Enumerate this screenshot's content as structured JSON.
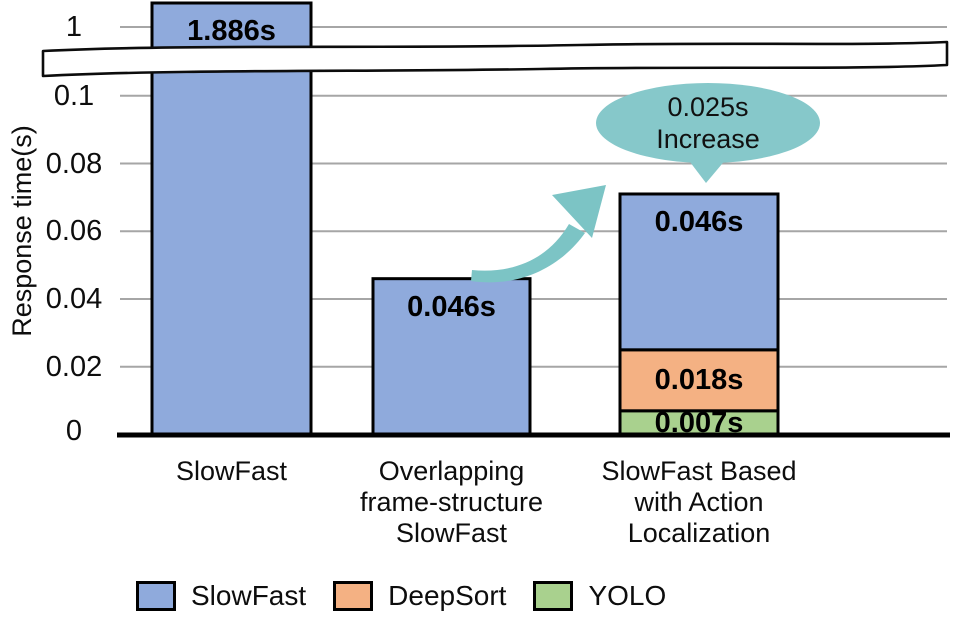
{
  "figure": {
    "y_axis_title": "Response time(s)",
    "y_tick_labels": [
      "1",
      "0.1",
      "0.08",
      "0.06",
      "0.04",
      "0.02",
      "0"
    ],
    "legend": [
      {
        "label": "SlowFast",
        "color": "#8FAADC"
      },
      {
        "label": "DeepSort",
        "color": "#F4B183"
      },
      {
        "label": "YOLO",
        "color": "#A9D18E"
      }
    ],
    "colors": {
      "bar_blue": "#8FAADC",
      "bar_orange": "#F4B183",
      "bar_green": "#A9D18E",
      "callout_teal": "#86C8CA",
      "arrow_teal": "#7CC4C5",
      "gridline_gray": "#A6A6A6",
      "outline_black": "#000000"
    }
  },
  "chart_data": {
    "type": "bar",
    "stacked": true,
    "title": "",
    "xlabel": "",
    "ylabel": "Response time(s)",
    "y_axis": {
      "unit": "s",
      "tick_values": [
        0,
        0.02,
        0.04,
        0.06,
        0.08,
        0.1,
        1
      ],
      "axis_break_between": [
        0.1,
        1
      ],
      "grid": true
    },
    "legend_position": "bottom",
    "series_names": [
      "SlowFast",
      "DeepSort",
      "YOLO"
    ],
    "categories": [
      "SlowFast",
      "Overlapping frame-structure SlowFast",
      "SlowFast Based with Action Localization"
    ],
    "bars": [
      {
        "category_lines": [
          "SlowFast"
        ],
        "segments": [
          {
            "series": "SlowFast",
            "value": 1.886,
            "label": "1.886s",
            "color": "#8FAADC",
            "exceeds_break": true
          }
        ]
      },
      {
        "category_lines": [
          "Overlapping",
          "frame-structure",
          "SlowFast"
        ],
        "segments": [
          {
            "series": "SlowFast",
            "value": 0.046,
            "label": "0.046s",
            "color": "#8FAADC"
          }
        ]
      },
      {
        "category_lines": [
          "SlowFast Based",
          "with Action",
          "Localization"
        ],
        "segments": [
          {
            "series": "YOLO",
            "value": 0.007,
            "label": "0.007s",
            "color": "#A9D18E"
          },
          {
            "series": "DeepSort",
            "value": 0.018,
            "label": "0.018s",
            "color": "#F4B183"
          },
          {
            "series": "SlowFast",
            "value": 0.046,
            "label": "0.046s",
            "color": "#8FAADC"
          }
        ]
      }
    ],
    "annotation": {
      "line1": "0.025s",
      "line2": "Increase",
      "value": 0.025
    }
  }
}
